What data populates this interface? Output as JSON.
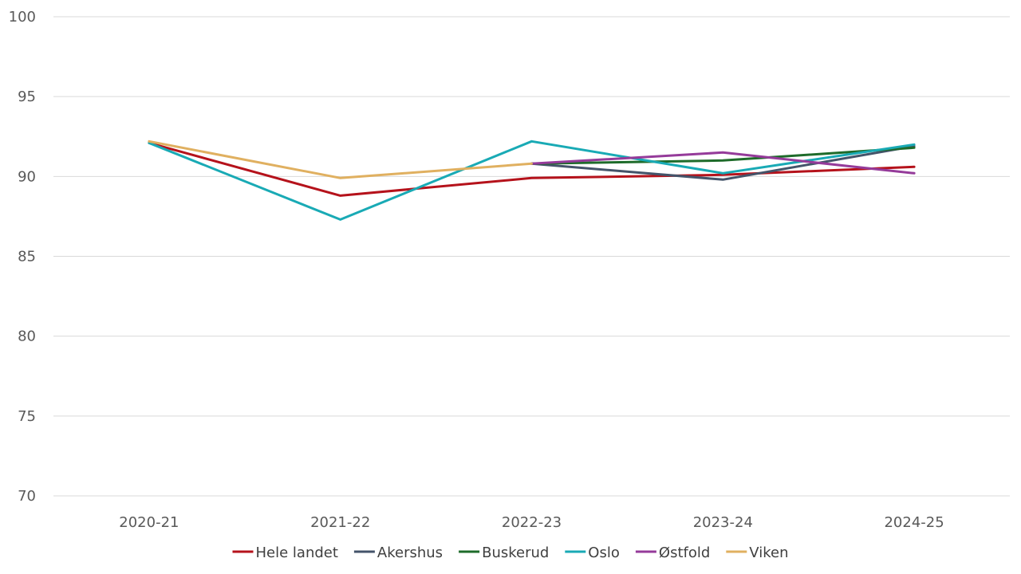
{
  "chart_data": {
    "type": "line",
    "title": "",
    "xlabel": "",
    "ylabel": "",
    "categories": [
      "2020-21",
      "2021-22",
      "2022-23",
      "2023-24",
      "2024-25"
    ],
    "ylim": [
      70,
      100
    ],
    "yticks": [
      70,
      75,
      80,
      85,
      90,
      95,
      100
    ],
    "grid": true,
    "legend_position": "bottom",
    "series": [
      {
        "name": "Hele landet",
        "color": "#b5121b",
        "values": [
          92.1,
          88.8,
          89.9,
          90.1,
          90.6
        ]
      },
      {
        "name": "Akershus",
        "color": "#44546a",
        "values": [
          null,
          null,
          90.8,
          89.8,
          91.9
        ]
      },
      {
        "name": "Buskerud",
        "color": "#1e6b2a",
        "values": [
          null,
          null,
          90.8,
          91.0,
          91.8
        ]
      },
      {
        "name": "Oslo",
        "color": "#19aab5",
        "values": [
          92.1,
          87.3,
          92.2,
          90.2,
          92.0
        ]
      },
      {
        "name": "Østfold",
        "color": "#953b9a",
        "values": [
          null,
          null,
          90.8,
          91.5,
          90.2
        ]
      },
      {
        "name": "Viken",
        "color": "#e0b060",
        "values": [
          92.2,
          89.9,
          90.8,
          null,
          null
        ]
      }
    ]
  }
}
